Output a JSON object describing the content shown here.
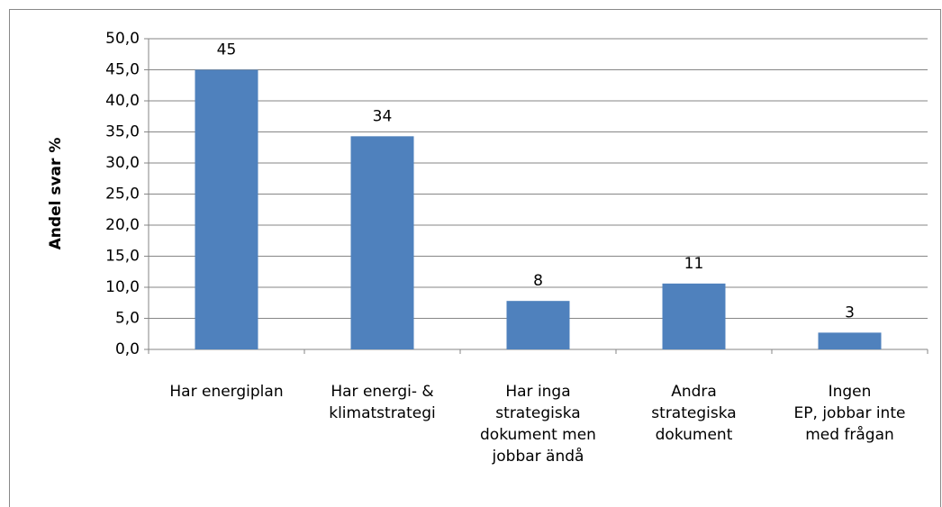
{
  "chart_data": {
    "type": "bar",
    "y_label": "Andel svar %",
    "categories": [
      "Har energiplan",
      "Har energi- &\nklimatstrategi",
      "Har inga\nstrategiska\ndokument men\njobbar ändå",
      "Andra\nstrategiska\ndokument",
      "Ingen\nEP, jobbar inte\nmed frågan"
    ],
    "values": [
      45.0,
      34.3,
      7.8,
      10.6,
      2.7
    ],
    "value_labels": [
      "45",
      "34",
      "8",
      "11",
      "3"
    ],
    "color": "#4f81bd",
    "ylim": [
      0,
      50
    ],
    "yticks": [
      {
        "value": 0,
        "label": "0,0"
      },
      {
        "value": 5,
        "label": "5,0"
      },
      {
        "value": 10,
        "label": "10,0"
      },
      {
        "value": 15,
        "label": "15,0"
      },
      {
        "value": 20,
        "label": "20,0"
      },
      {
        "value": 25,
        "label": "25,0"
      },
      {
        "value": 30,
        "label": "30,0"
      },
      {
        "value": 35,
        "label": "35,0"
      },
      {
        "value": 40,
        "label": "40,0"
      },
      {
        "value": 45,
        "label": "45,0"
      },
      {
        "value": 50,
        "label": "50,0"
      }
    ],
    "grid": true
  }
}
